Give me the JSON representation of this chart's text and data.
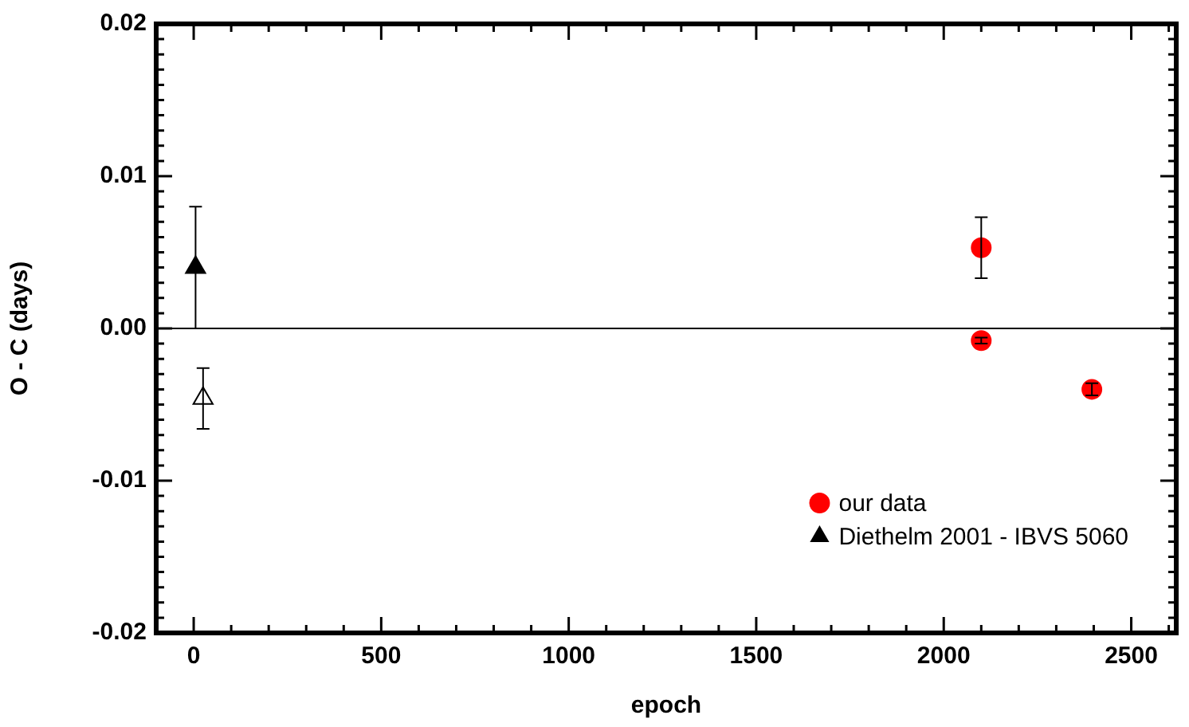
{
  "chart_data": {
    "type": "scatter",
    "xlabel": "epoch",
    "ylabel": "O - C (days)",
    "xlim": [
      -100,
      2620
    ],
    "ylim": [
      -0.02,
      0.02
    ],
    "xticks": [
      0,
      {
        "value": 100,
        "label": null
      },
      {
        "value": 200,
        "label": null
      },
      {
        "value": 300,
        "label": null
      },
      {
        "value": 400,
        "label": null
      },
      500,
      {
        "value": 600,
        "label": null
      },
      {
        "value": 700,
        "label": null
      },
      {
        "value": 800,
        "label": null
      },
      {
        "value": 900,
        "label": null
      },
      1000,
      {
        "value": 1100,
        "label": null
      },
      {
        "value": 1200,
        "label": null
      },
      {
        "value": 1300,
        "label": null
      },
      {
        "value": 1400,
        "label": null
      },
      1500,
      {
        "value": 1600,
        "label": null
      },
      {
        "value": 1700,
        "label": null
      },
      {
        "value": 1800,
        "label": null
      },
      {
        "value": 1900,
        "label": null
      },
      2000,
      {
        "value": 2100,
        "label": null
      },
      {
        "value": 2200,
        "label": null
      },
      {
        "value": 2300,
        "label": null
      },
      {
        "value": 2400,
        "label": null
      },
      2500,
      {
        "value": 2600,
        "label": null
      }
    ],
    "yticks": [
      -0.02,
      {
        "value": -0.019,
        "label": null
      },
      {
        "value": -0.018,
        "label": null
      },
      {
        "value": -0.017,
        "label": null
      },
      {
        "value": -0.016,
        "label": null
      },
      {
        "value": -0.015,
        "label": null
      },
      {
        "value": -0.014,
        "label": null
      },
      {
        "value": -0.013,
        "label": null
      },
      {
        "value": -0.012,
        "label": null
      },
      {
        "value": -0.011,
        "label": null
      },
      -0.01,
      {
        "value": -0.009,
        "label": null
      },
      {
        "value": -0.008,
        "label": null
      },
      {
        "value": -0.007,
        "label": null
      },
      {
        "value": -0.006,
        "label": null
      },
      {
        "value": -0.005,
        "label": null
      },
      {
        "value": -0.004,
        "label": null
      },
      {
        "value": -0.003,
        "label": null
      },
      {
        "value": -0.002,
        "label": null
      },
      {
        "value": -0.001,
        "label": null
      },
      {
        "value": 0,
        "label": "0.00"
      },
      {
        "value": 0.001,
        "label": null
      },
      {
        "value": 0.002,
        "label": null
      },
      {
        "value": 0.003,
        "label": null
      },
      {
        "value": 0.004,
        "label": null
      },
      {
        "value": 0.005,
        "label": null
      },
      {
        "value": 0.006,
        "label": null
      },
      {
        "value": 0.007,
        "label": null
      },
      {
        "value": 0.008,
        "label": null
      },
      {
        "value": 0.009,
        "label": null
      },
      0.01,
      {
        "value": 0.011,
        "label": null
      },
      {
        "value": 0.012,
        "label": null
      },
      {
        "value": 0.013,
        "label": null
      },
      {
        "value": 0.014,
        "label": null
      },
      {
        "value": 0.015,
        "label": null
      },
      {
        "value": 0.016,
        "label": null
      },
      {
        "value": 0.017,
        "label": null
      },
      {
        "value": 0.018,
        "label": null
      },
      {
        "value": 0.019,
        "label": null
      },
      0.02
    ],
    "grid": false,
    "legend": "bottom right",
    "ref_lines": [
      {
        "axis": "y",
        "value": 0,
        "color": "#000000"
      }
    ],
    "series": [
      {
        "name": "our data",
        "color": "#ff0000",
        "marker": "circle",
        "x": [
          2100,
          2100,
          2395
        ],
        "values": [
          0.0053,
          -0.0008,
          -0.004
        ],
        "errors": [
          0.002,
          0.0002,
          0.0004
        ]
      },
      {
        "name": "Diethelm 2001 - IBVS 5060",
        "color": "#000000",
        "marker": "triangle",
        "x": [
          5
        ],
        "values": [
          0.004
        ],
        "errors": [
          0.004
        ]
      },
      {
        "color": "#000000",
        "marker": "triangle",
        "x": [
          25
        ],
        "values": [
          -0.0046
        ],
        "errors": [
          0.002
        ]
      }
    ]
  }
}
